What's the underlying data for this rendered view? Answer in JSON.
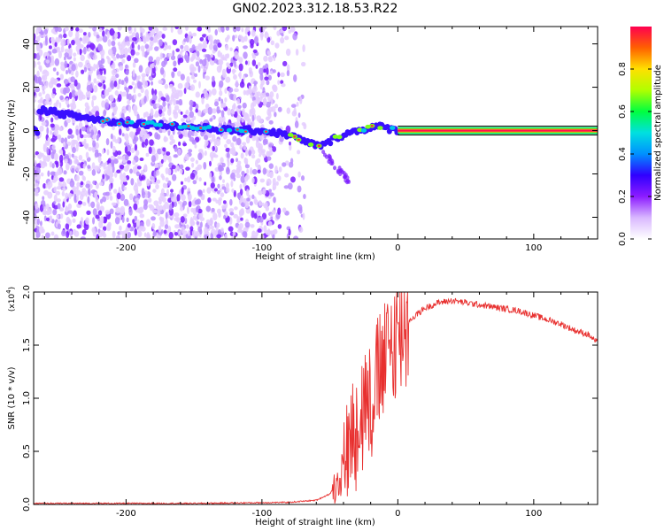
{
  "title": "GN02.2023.312.18.53.R22",
  "chart_data": [
    {
      "type": "heatmap",
      "xlabel": "Height of straight line (km)",
      "ylabel": "Frequency (Hz)",
      "xlim": [
        -268,
        147
      ],
      "ylim": [
        -50,
        48
      ],
      "xticks": [
        -200,
        -100,
        0,
        100
      ],
      "yticks": [
        -40,
        -20,
        0,
        20,
        40
      ],
      "colorbar": {
        "label": "Normalized spectral amplitude",
        "range": [
          0,
          1
        ],
        "ticks": [
          0.0,
          0.2,
          0.4,
          0.6,
          0.8
        ],
        "colors": [
          "#ffffff",
          "#d9b8ff",
          "#8c1cff",
          "#3000ff",
          "#0090ff",
          "#00e0e0",
          "#00ff40",
          "#b0ff00",
          "#ffe000",
          "#ff6000",
          "#ff0050"
        ]
      },
      "ridge": [
        {
          "x": -265,
          "y": 10
        },
        {
          "x": -240,
          "y": 7
        },
        {
          "x": -210,
          "y": 4
        },
        {
          "x": -180,
          "y": 3
        },
        {
          "x": -140,
          "y": 1
        },
        {
          "x": -120,
          "y": 0
        },
        {
          "x": -100,
          "y": 0
        },
        {
          "x": -80,
          "y": -2
        },
        {
          "x": -65,
          "y": -6
        },
        {
          "x": -55,
          "y": -7
        },
        {
          "x": -45,
          "y": -3
        },
        {
          "x": -30,
          "y": 0
        },
        {
          "x": -15,
          "y": 2
        },
        {
          "x": 0,
          "y": 0
        },
        {
          "x": 147,
          "y": 0
        }
      ],
      "tone_line": {
        "y": 0,
        "x_from": 0,
        "x_to": 147
      }
    },
    {
      "type": "line",
      "xlabel": "Height of straight line (km)",
      "ylabel": "SNR (10 * v/v)",
      "scale_note": "(x10",
      "scale_exp": "4",
      "xlim": [
        -268,
        147
      ],
      "ylim": [
        0,
        2.0
      ],
      "xticks": [
        -200,
        -100,
        0,
        100
      ],
      "yticks": [
        0.0,
        0.5,
        1.0,
        1.5,
        2.0
      ],
      "series": [
        {
          "color": "#e8302f",
          "x": [
            -268,
            -150,
            -80,
            -60,
            -50,
            -45,
            -40,
            -35,
            -30,
            -25,
            -20,
            -15,
            -10,
            -5,
            0,
            10,
            20,
            30,
            40,
            50,
            60,
            70,
            80,
            90,
            100,
            110,
            120,
            130,
            140,
            147
          ],
          "y": [
            0.01,
            0.01,
            0.02,
            0.04,
            0.1,
            0.2,
            0.4,
            0.6,
            0.8,
            0.95,
            1.05,
            1.15,
            1.3,
            1.5,
            1.6,
            1.75,
            1.85,
            1.9,
            1.92,
            1.9,
            1.88,
            1.86,
            1.84,
            1.82,
            1.78,
            1.74,
            1.7,
            1.64,
            1.6,
            1.52
          ]
        }
      ]
    }
  ]
}
